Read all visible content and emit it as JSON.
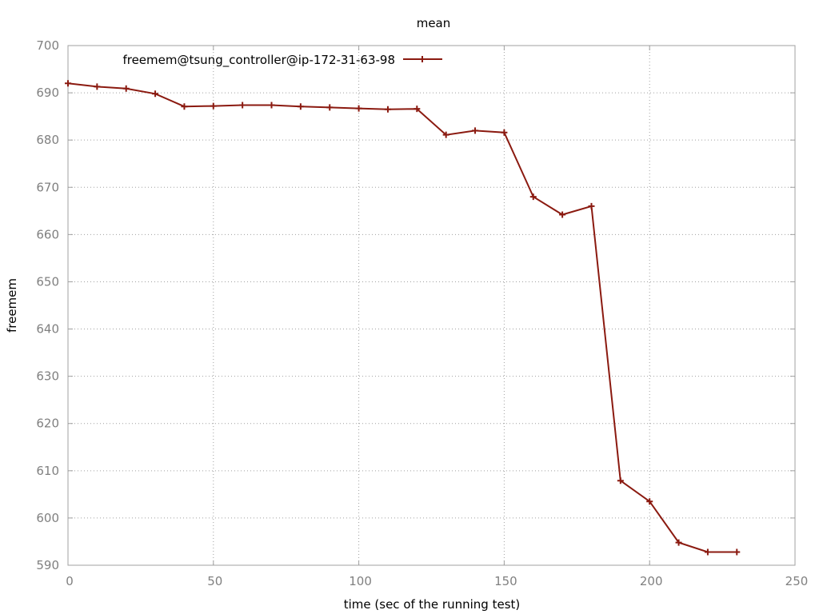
{
  "chart_data": {
    "type": "line",
    "title": "mean",
    "xlabel": "time (sec of the running test)",
    "ylabel": "freemem",
    "xlim": [
      0,
      250
    ],
    "ylim": [
      590,
      700
    ],
    "xticks": [
      0,
      50,
      100,
      150,
      200,
      250
    ],
    "yticks": [
      590,
      600,
      610,
      620,
      630,
      640,
      650,
      660,
      670,
      680,
      690,
      700
    ],
    "grid": true,
    "legend_position": "top-left",
    "series": [
      {
        "name": "freemem@tsung_controller@ip-172-31-63-98",
        "color": "#8b1a10",
        "marker": "plus",
        "x": [
          0,
          10,
          20,
          30,
          40,
          50,
          60,
          70,
          80,
          90,
          100,
          110,
          120,
          130,
          140,
          150,
          160,
          170,
          180,
          190,
          200,
          210,
          220,
          230
        ],
        "y": [
          692.0,
          691.3,
          690.9,
          689.8,
          687.1,
          687.2,
          687.4,
          687.4,
          687.1,
          686.9,
          686.7,
          686.5,
          686.6,
          681.1,
          682.0,
          681.6,
          668.0,
          664.2,
          666.0,
          607.9,
          603.5,
          594.8,
          592.8,
          592.8
        ]
      }
    ]
  }
}
